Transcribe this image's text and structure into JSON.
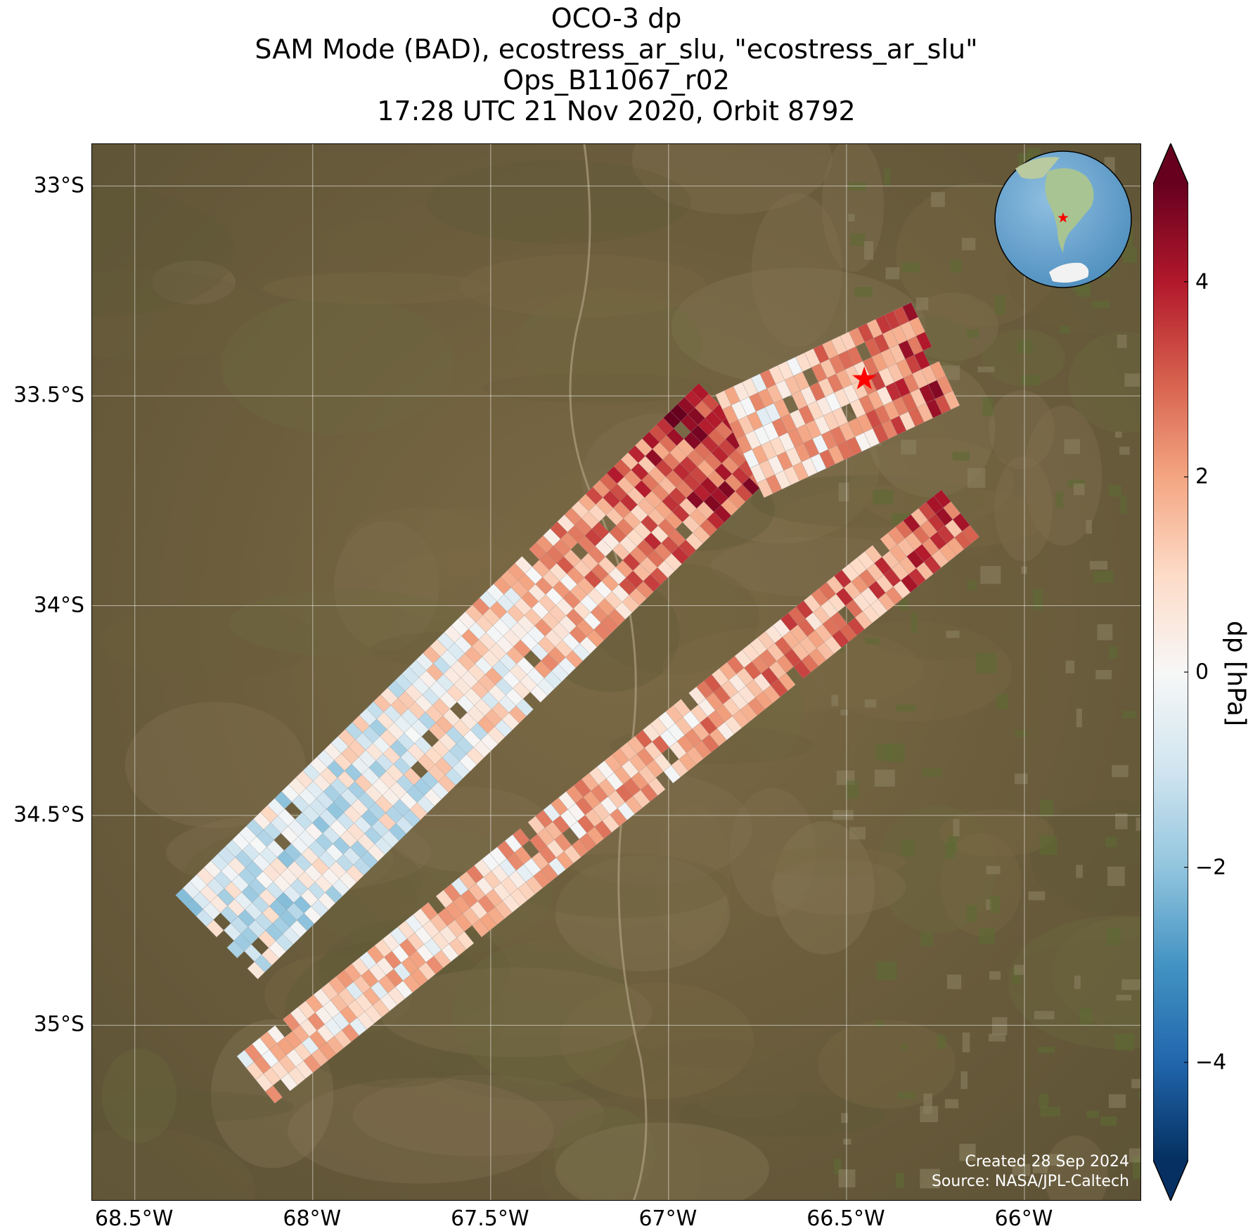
{
  "title": {
    "line1": "OCO-3 dp",
    "line2": "SAM Mode (BAD), ecostress_ar_slu, \"ecostress_ar_slu\"",
    "line3": "Ops_B11067_r02",
    "line4": "17:28 UTC 21 Nov 2020, Orbit 8792"
  },
  "map": {
    "lon_range": [
      -68.62,
      -65.67
    ],
    "lat_range": [
      -35.42,
      -32.9
    ],
    "x_ticks": [
      {
        "value": -68.5,
        "label": "68.5°W"
      },
      {
        "value": -68.0,
        "label": "68°W"
      },
      {
        "value": -67.5,
        "label": "67.5°W"
      },
      {
        "value": -67.0,
        "label": "67°W"
      },
      {
        "value": -66.5,
        "label": "66.5°W"
      },
      {
        "value": -66.0,
        "label": "66°W"
      }
    ],
    "y_ticks": [
      {
        "value": -33.0,
        "label": "33°S"
      },
      {
        "value": -33.5,
        "label": "33.5°S"
      },
      {
        "value": -34.0,
        "label": "34°S"
      },
      {
        "value": -34.5,
        "label": "34.5°S"
      },
      {
        "value": -35.0,
        "label": "35°S"
      }
    ],
    "target_marker": {
      "lon": -66.45,
      "lat": -33.46,
      "symbol": "star",
      "color": "#ff0000"
    },
    "basemap": "satellite imagery",
    "gridlines": true,
    "swaths": [
      {
        "start": {
          "lon": -68.27,
          "lat": -34.79
        },
        "end": {
          "lon": -66.8,
          "lat": -33.57
        },
        "width_deg": 0.33,
        "mean_dp": -0.6,
        "end_mean_dp": 4.2
      },
      {
        "start": {
          "lon": -68.16,
          "lat": -35.13
        },
        "end": {
          "lon": -66.18,
          "lat": -33.78
        },
        "width_deg": 0.17,
        "mean_dp": 0.8,
        "end_mean_dp": 3.0
      },
      {
        "start": {
          "lon": -66.8,
          "lat": -33.62
        },
        "end": {
          "lon": -66.25,
          "lat": -33.4
        },
        "width_deg": 0.32,
        "mean_dp": 1.0,
        "end_mean_dp": 3.5
      }
    ],
    "credits": {
      "created": "Created 28 Sep 2024",
      "source": "Source: NASA/JPL-Caltech"
    }
  },
  "colorbar": {
    "label": "dp [hPa]",
    "colormap": "RdBu_r",
    "range": [
      -5,
      5
    ],
    "ticks": [
      {
        "value": 4,
        "label": "4"
      },
      {
        "value": 2,
        "label": "2"
      },
      {
        "value": 0,
        "label": "0"
      },
      {
        "value": -2,
        "label": "−2"
      },
      {
        "value": -4,
        "label": "−4"
      }
    ],
    "extend": "both"
  },
  "inset": {
    "type": "globe",
    "center_region": "South America",
    "marker": {
      "symbol": "star",
      "color": "#ff0000"
    }
  }
}
